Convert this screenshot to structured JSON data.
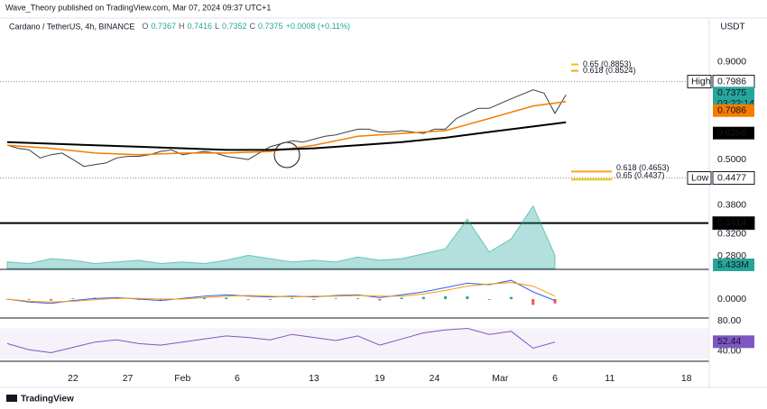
{
  "header": {
    "publisher": "Wave_Theory published on TradingView.com, Mar 07, 2024 09:37 UTC+1",
    "brand": "TradingView"
  },
  "chart_data": [
    {
      "type": "line",
      "title": "Cardano / TetherUS, 4h, BINANCE",
      "quote": [
        "O",
        "0.7367",
        "H",
        "0.7416",
        "L",
        "0.7352",
        "C",
        "0.7375",
        "+0.0008 (+0.11%)"
      ],
      "currency": "USDT",
      "log_scale": true,
      "xlim": [
        16,
        80
      ],
      "xticks": [
        22,
        27,
        {
          "value": 32,
          "label": "Feb"
        },
        {
          "value": 37,
          "label": "6"
        },
        {
          "value": 44,
          "label": "13"
        },
        {
          "value": 50,
          "label": "19"
        },
        {
          "value": 55,
          "label": "24"
        },
        {
          "value": 61,
          "label": "Mar"
        },
        {
          "value": 66,
          "label": "6"
        },
        {
          "value": 71,
          "label": "11"
        },
        {
          "value": 78,
          "label": "18"
        }
      ],
      "ylim": [
        0.26,
        1.17
      ],
      "yticks": [
        {
          "value": 0.9,
          "label": "0.9000"
        },
        {
          "value": 0.5,
          "label": "0.5000"
        },
        {
          "value": 0.38,
          "label": "0.3800"
        },
        {
          "value": 0.32,
          "label": "0.3200"
        },
        {
          "value": 0.28,
          "label": "0.2800"
        }
      ],
      "series": [
        {
          "color": "#3a3d47",
          "x": [
            16,
            17,
            18,
            19,
            20,
            21,
            22,
            23,
            24,
            25,
            26,
            27,
            28,
            29,
            30,
            31,
            32,
            33,
            34,
            35,
            36,
            37,
            38,
            39,
            40,
            41,
            42,
            43,
            44,
            45,
            46,
            47,
            48,
            49,
            50,
            51,
            52,
            53,
            54,
            55,
            56,
            57,
            58,
            59,
            60,
            61,
            62,
            63,
            64,
            65,
            66,
            67
          ],
          "values": [
            0.545,
            0.535,
            0.53,
            0.505,
            0.515,
            0.52,
            0.5,
            0.48,
            0.485,
            0.49,
            0.505,
            0.51,
            0.51,
            0.515,
            0.525,
            0.53,
            0.515,
            0.52,
            0.525,
            0.52,
            0.51,
            0.505,
            0.5,
            0.52,
            0.54,
            0.55,
            0.56,
            0.555,
            0.565,
            0.575,
            0.58,
            0.59,
            0.6,
            0.6,
            0.59,
            0.59,
            0.595,
            0.59,
            0.585,
            0.6,
            0.6,
            0.64,
            0.66,
            0.68,
            0.68,
            0.7,
            0.72,
            0.74,
            0.76,
            0.745,
            0.66,
            0.7375
          ]
        },
        {
          "color": "#f57c00",
          "x": [
            16,
            20,
            24,
            28,
            32,
            36,
            40,
            44,
            48,
            52,
            56,
            60,
            64,
            67
          ],
          "values": [
            0.545,
            0.535,
            0.52,
            0.515,
            0.52,
            0.52,
            0.525,
            0.545,
            0.575,
            0.585,
            0.595,
            0.64,
            0.69,
            0.7086
          ]
        },
        {
          "color": "#000000",
          "x": [
            16,
            20,
            24,
            28,
            32,
            36,
            40,
            44,
            48,
            52,
            56,
            60,
            64,
            67
          ],
          "values": [
            0.555,
            0.55,
            0.545,
            0.54,
            0.535,
            0.53,
            0.53,
            0.535,
            0.545,
            0.555,
            0.57,
            0.59,
            0.61,
            0.6256
          ]
        }
      ],
      "levels": [
        {
          "label": "High",
          "value": 0.7986
        },
        {
          "label": "Low",
          "value": 0.4477
        },
        {
          "value": 0.3414,
          "style": "solid"
        }
      ],
      "markers": [
        {
          "value": 0.7375,
          "color": "#26a69a"
        },
        {
          "value": 0.7086,
          "color": "#f57c00"
        },
        {
          "value": 0.6256,
          "color": "#000000"
        }
      ],
      "countdown": "03:22:14",
      "fib": [
        {
          "label": "0.65 (0.8853)",
          "value": 0.8853,
          "color": "#f0c400"
        },
        {
          "label": "0.618 (0.8524)",
          "value": 0.8524,
          "color": "#f5a623"
        },
        {
          "label": "0.618 (0.4653)",
          "value": 0.4653,
          "color": "#f5a623"
        },
        {
          "label": "0.65 (0.4437)",
          "value": 0.4437,
          "color": "#f0c400"
        }
      ]
    },
    {
      "type": "area",
      "color": "#26a69a",
      "ylim": [
        0,
        40
      ],
      "x": [
        16,
        18,
        20,
        22,
        24,
        26,
        28,
        30,
        32,
        34,
        36,
        38,
        40,
        42,
        44,
        46,
        48,
        50,
        52,
        54,
        56,
        58,
        60,
        62,
        64,
        66
      ],
      "values": [
        4,
        3,
        6,
        5,
        3,
        4,
        5,
        3,
        4,
        3,
        5,
        8,
        6,
        4,
        5,
        4,
        7,
        5,
        6,
        9,
        12,
        30,
        10,
        18,
        38,
        8
      ],
      "current_value": 5.433,
      "current_label": "5.433M"
    },
    {
      "type": "line",
      "ylim": [
        -0.025,
        0.04
      ],
      "yticks": [
        {
          "value": 0,
          "label": "0.0000"
        }
      ],
      "x": [
        16,
        18,
        20,
        22,
        24,
        26,
        28,
        30,
        32,
        34,
        36,
        38,
        40,
        42,
        44,
        46,
        48,
        50,
        52,
        54,
        56,
        58,
        60,
        62,
        64,
        66
      ],
      "histogram": [
        0,
        -0.001,
        -0.002,
        0.001,
        0.002,
        0.001,
        -0.001,
        -0.002,
        0.001,
        0.002,
        0.002,
        -0.001,
        -0.001,
        0.001,
        -0.001,
        0.001,
        0.001,
        -0.002,
        0.002,
        0.003,
        0.004,
        0.004,
        -0.001,
        0.003,
        -0.008,
        -0.006
      ],
      "series": [
        {
          "color": "#2962ff",
          "values": [
            0,
            -0.004,
            -0.006,
            -0.002,
            0.001,
            0.002,
            0,
            -0.002,
            0.001,
            0.004,
            0.006,
            0.004,
            0.003,
            0.004,
            0.003,
            0.005,
            0.006,
            0.002,
            0.006,
            0.01,
            0.016,
            0.022,
            0.02,
            0.026,
            0.01,
            -0.002
          ]
        },
        {
          "color": "#ff9800",
          "values": [
            0,
            -0.003,
            -0.004,
            -0.003,
            -0.001,
            0.001,
            0.001,
            0,
            0,
            0.002,
            0.004,
            0.005,
            0.004,
            0.003,
            0.004,
            0.004,
            0.005,
            0.004,
            0.004,
            0.007,
            0.012,
            0.018,
            0.021,
            0.023,
            0.018,
            0.004
          ]
        }
      ]
    },
    {
      "type": "line",
      "color": "#7e57c2",
      "ylim": [
        28,
        80
      ],
      "band": [
        30,
        70
      ],
      "yticks": [
        {
          "value": 80,
          "label": "80.00"
        },
        {
          "value": 40,
          "label": "40.00"
        }
      ],
      "x": [
        16,
        18,
        20,
        22,
        24,
        26,
        28,
        30,
        32,
        34,
        36,
        38,
        40,
        42,
        44,
        46,
        48,
        50,
        52,
        54,
        56,
        58,
        60,
        62,
        64,
        66
      ],
      "values": [
        50,
        42,
        38,
        45,
        52,
        55,
        50,
        48,
        52,
        56,
        60,
        58,
        55,
        62,
        58,
        54,
        60,
        48,
        56,
        64,
        68,
        70,
        62,
        66,
        44,
        52
      ],
      "current_value": 52.44
    }
  ]
}
